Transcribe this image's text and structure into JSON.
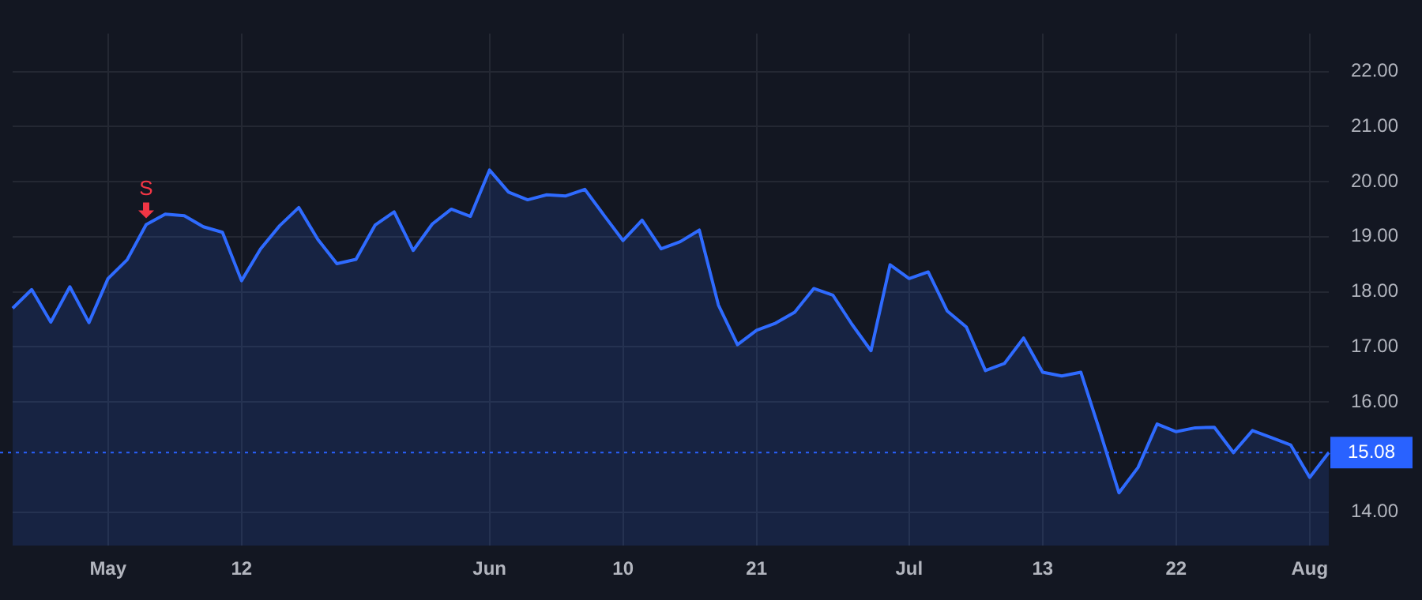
{
  "chart_data": {
    "type": "area",
    "categories": [
      null,
      null,
      null,
      null,
      null,
      "May",
      null,
      null,
      null,
      null,
      null,
      null,
      "12",
      null,
      null,
      null,
      null,
      null,
      null,
      null,
      null,
      null,
      null,
      null,
      null,
      "Jun",
      null,
      null,
      null,
      null,
      null,
      null,
      "10",
      null,
      null,
      null,
      null,
      null,
      null,
      "21",
      null,
      null,
      null,
      null,
      null,
      null,
      null,
      "Jul",
      null,
      null,
      null,
      null,
      null,
      null,
      "13",
      null,
      null,
      null,
      null,
      null,
      null,
      "22",
      null,
      null,
      null,
      null,
      null,
      null,
      "Aug",
      null
    ],
    "series": [
      {
        "color": "#2f6bff",
        "values": [
          17.7,
          18.04,
          17.45,
          18.09,
          17.44,
          18.24,
          18.58,
          19.22,
          19.41,
          19.38,
          19.18,
          19.08,
          18.2,
          18.78,
          19.2,
          19.53,
          18.95,
          18.51,
          18.59,
          19.21,
          19.45,
          18.75,
          19.23,
          19.5,
          19.37,
          20.21,
          19.81,
          19.67,
          19.76,
          19.74,
          19.86,
          19.39,
          18.93,
          19.3,
          18.78,
          18.91,
          19.12,
          17.76,
          17.04,
          17.3,
          17.43,
          17.63,
          18.06,
          17.94,
          17.41,
          16.93,
          18.49,
          18.24,
          18.36,
          17.65,
          17.36,
          16.57,
          16.7,
          17.16,
          16.54,
          16.47,
          16.54,
          15.47,
          14.35,
          14.81,
          15.6,
          15.46,
          15.53,
          15.54,
          15.08,
          15.48,
          15.35,
          15.22,
          14.63,
          15.08
        ]
      }
    ],
    "ylim": [
      13.39,
      22.69
    ],
    "yticks": [
      {
        "value": 14,
        "label": "14.00"
      },
      {
        "value": 16,
        "label": "16.00"
      },
      {
        "value": 17,
        "label": "17.00"
      },
      {
        "value": 18,
        "label": "18.00"
      },
      {
        "value": 19,
        "label": "19.00"
      },
      {
        "value": 20,
        "label": "20.00"
      },
      {
        "value": 21,
        "label": "21.00"
      },
      {
        "value": 22,
        "label": "22.00"
      }
    ],
    "ref_lines": [
      {
        "axis": "y",
        "value": 15.08,
        "label": "15.08",
        "color": "#2962ff",
        "line_style": "dotted"
      }
    ],
    "annotations": [
      {
        "text": "S",
        "y": 19.22
      }
    ],
    "grid": true,
    "legend": false,
    "marker": "none",
    "line_style": "solid"
  }
}
